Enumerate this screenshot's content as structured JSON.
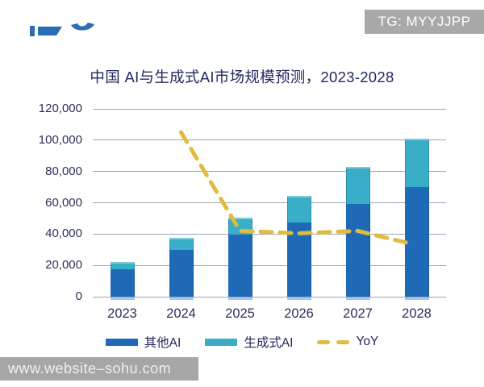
{
  "badge": {
    "label": "TG: MYYJJPP",
    "bg": "#a9a9a9"
  },
  "title": {
    "text": "中国 AI与生成式AI市场规模预测，2023-2028"
  },
  "watermark": {
    "text": "www.website–sohu.com"
  },
  "chart_data": {
    "type": "bar",
    "subtype": "stacked-bar-with-dashed-line",
    "title": "中国 AI与生成式AI市场规模预测，2023-2028",
    "categories": [
      "2023",
      "2024",
      "2025",
      "2026",
      "2027",
      "2028"
    ],
    "series": [
      {
        "name": "其他AI",
        "type": "bar",
        "color": "#1f6ab6",
        "values": [
          17500,
          30000,
          39500,
          47500,
          59000,
          70000
        ]
      },
      {
        "name": "生成式AI",
        "type": "bar",
        "color": "#3aadc8",
        "values": [
          4500,
          7500,
          11000,
          17000,
          24000,
          31000
        ]
      },
      {
        "name": "YoY",
        "type": "line",
        "color": "#dfbc3e",
        "style": "dashed",
        "axis": "hidden-secondary",
        "values_left_axis_equiv": [
          null,
          105000,
          42000,
          40500,
          42000,
          33000
        ]
      }
    ],
    "stacked_totals": [
      22000,
      37500,
      50500,
      64500,
      83000,
      101000
    ],
    "xlabel": "",
    "ylabel": "",
    "ylim": [
      0,
      120000
    ],
    "ytick_step": 20000,
    "ytick_labels": [
      "0",
      "20,000",
      "40,000",
      "60,000",
      "80,000",
      "100,000",
      "120,000"
    ],
    "grid": true,
    "grid_color": "#9fa4bc",
    "text_color": "#2c3158",
    "legend_position": "bottom"
  }
}
